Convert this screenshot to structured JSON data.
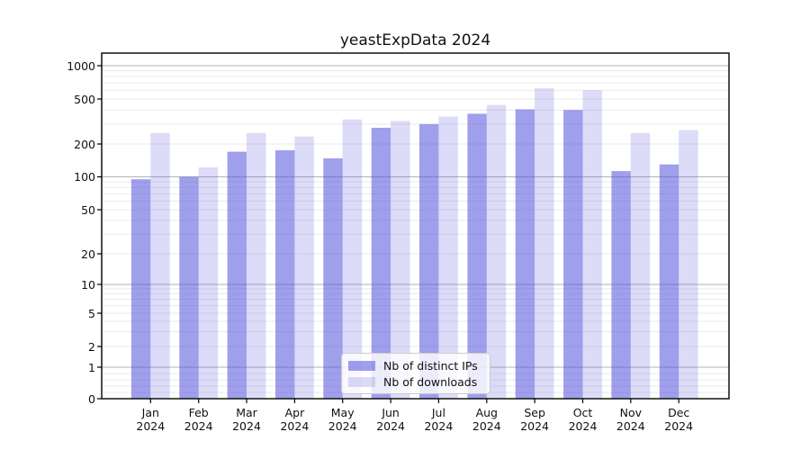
{
  "chart_data": {
    "type": "bar",
    "title": "yeastExpData 2024",
    "xlabel": "",
    "ylabel": "",
    "yscale": "symlog",
    "y_ticks": [
      0,
      1,
      2,
      5,
      10,
      20,
      50,
      100,
      200,
      500,
      1000
    ],
    "ylim": [
      0,
      1200
    ],
    "grid": true,
    "legend_position": "lower center inside axes",
    "categories": [
      "Jan 2024",
      "Feb 2024",
      "Mar 2024",
      "Apr 2024",
      "May 2024",
      "Jun 2024",
      "Jul 2024",
      "Aug 2024",
      "Sep 2024",
      "Oct 2024",
      "Nov 2024",
      "Dec 2024"
    ],
    "series": [
      {
        "name": "Nb of distinct IPs",
        "color": "rgba(80,80,220,0.55)",
        "values": [
          95,
          100,
          170,
          175,
          148,
          278,
          300,
          370,
          405,
          400,
          113,
          130
        ]
      },
      {
        "name": "Nb of downloads",
        "color": "rgba(80,80,220,0.20)",
        "values": [
          250,
          122,
          250,
          233,
          330,
          320,
          350,
          443,
          625,
          600,
          250,
          265
        ]
      }
    ],
    "colors": {
      "axis": "#000000",
      "major_grid": "#b2b2b2",
      "minor_grid": "#e9e9e9"
    }
  }
}
